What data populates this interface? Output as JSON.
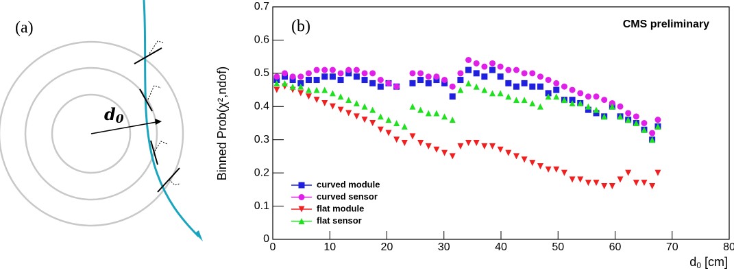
{
  "panel_a": {
    "label": "(a)",
    "symbol": "d",
    "subscript": "0"
  },
  "chart_data": {
    "type": "scatter",
    "panel_label": "(b)",
    "annotation": "CMS preliminary",
    "y_label": "Binned Prob(χ²,ndof)",
    "x_label": {
      "symbol": "d",
      "subscript": "0",
      "unit": "[cm]"
    },
    "xlim": [
      0,
      80
    ],
    "xticks": [
      0,
      10,
      20,
      30,
      40,
      50,
      60,
      70,
      80
    ],
    "ylim": [
      0,
      0.7
    ],
    "yticks": [
      0,
      0.1,
      0.2,
      0.3,
      0.4,
      0.5,
      0.6,
      0.7
    ],
    "legend": "bottom-left",
    "x": [
      0.7,
      2.1,
      3.5,
      4.9,
      6.3,
      7.7,
      9.1,
      10.5,
      11.9,
      13.3,
      14.7,
      16.1,
      17.5,
      18.9,
      20.3,
      21.7,
      23.1,
      24.5,
      25.9,
      27.3,
      28.7,
      30.1,
      31.5,
      32.9,
      34.3,
      35.7,
      37.1,
      38.5,
      39.9,
      41.3,
      42.7,
      44.1,
      45.5,
      46.9,
      48.3,
      49.7,
      51.1,
      52.5,
      53.9,
      55.3,
      56.7,
      58.1,
      59.5,
      60.9,
      62.3,
      63.7,
      65.1,
      66.5,
      67.5
    ],
    "series": [
      {
        "name": "curved module",
        "color": "#1f1fe0",
        "marker": "square",
        "values": [
          0.48,
          0.49,
          0.48,
          0.47,
          0.48,
          0.48,
          0.49,
          0.49,
          0.48,
          0.5,
          0.49,
          0.48,
          0.47,
          0.46,
          0.47,
          0.46,
          null,
          0.47,
          0.48,
          0.47,
          0.48,
          0.47,
          0.43,
          0.48,
          0.51,
          0.5,
          0.49,
          0.51,
          0.49,
          0.47,
          0.46,
          0.47,
          0.46,
          0.46,
          0.44,
          0.45,
          0.42,
          0.42,
          0.41,
          0.39,
          0.38,
          0.37,
          0.4,
          0.37,
          0.36,
          0.35,
          0.33,
          0.3,
          0.34
        ]
      },
      {
        "name": "curved sensor",
        "color": "#e020e8",
        "marker": "circle",
        "values": [
          0.49,
          0.5,
          0.49,
          0.49,
          0.5,
          0.51,
          0.51,
          0.51,
          0.5,
          0.51,
          0.51,
          0.5,
          0.5,
          0.48,
          0.47,
          0.46,
          null,
          0.5,
          0.5,
          0.49,
          0.49,
          0.48,
          0.46,
          0.5,
          0.54,
          0.53,
          0.52,
          0.53,
          0.52,
          0.51,
          0.51,
          0.5,
          0.5,
          0.49,
          0.48,
          0.47,
          0.46,
          0.45,
          0.44,
          0.43,
          0.43,
          0.42,
          0.41,
          0.4,
          0.38,
          0.37,
          0.35,
          0.32,
          0.36
        ]
      },
      {
        "name": "flat module",
        "color": "#f02020",
        "marker": "triangle-down",
        "values": [
          0.45,
          0.46,
          0.45,
          0.44,
          0.43,
          0.42,
          0.41,
          0.4,
          0.39,
          0.38,
          0.37,
          0.36,
          0.35,
          0.33,
          0.32,
          0.3,
          0.29,
          0.31,
          0.29,
          0.28,
          0.27,
          0.26,
          0.25,
          0.28,
          0.29,
          0.29,
          0.28,
          0.28,
          0.27,
          0.26,
          0.25,
          0.24,
          0.23,
          0.22,
          0.21,
          0.21,
          0.2,
          0.18,
          0.18,
          0.17,
          0.17,
          0.16,
          0.16,
          0.18,
          0.2,
          0.17,
          0.17,
          0.16,
          0.2
        ]
      },
      {
        "name": "flat sensor",
        "color": "#20e020",
        "marker": "triangle-up",
        "values": [
          0.47,
          0.47,
          0.46,
          0.46,
          0.45,
          0.45,
          0.45,
          0.44,
          0.43,
          0.42,
          0.41,
          0.4,
          0.39,
          0.37,
          0.36,
          0.35,
          0.34,
          0.4,
          0.39,
          0.38,
          0.38,
          0.37,
          0.36,
          0.45,
          0.47,
          0.46,
          0.45,
          0.44,
          0.44,
          0.43,
          0.42,
          0.42,
          0.41,
          0.4,
          0.43,
          0.43,
          0.42,
          0.41,
          0.41,
          0.4,
          0.39,
          0.37,
          0.4,
          0.37,
          0.36,
          0.35,
          0.33,
          0.3,
          0.34
        ]
      }
    ]
  }
}
